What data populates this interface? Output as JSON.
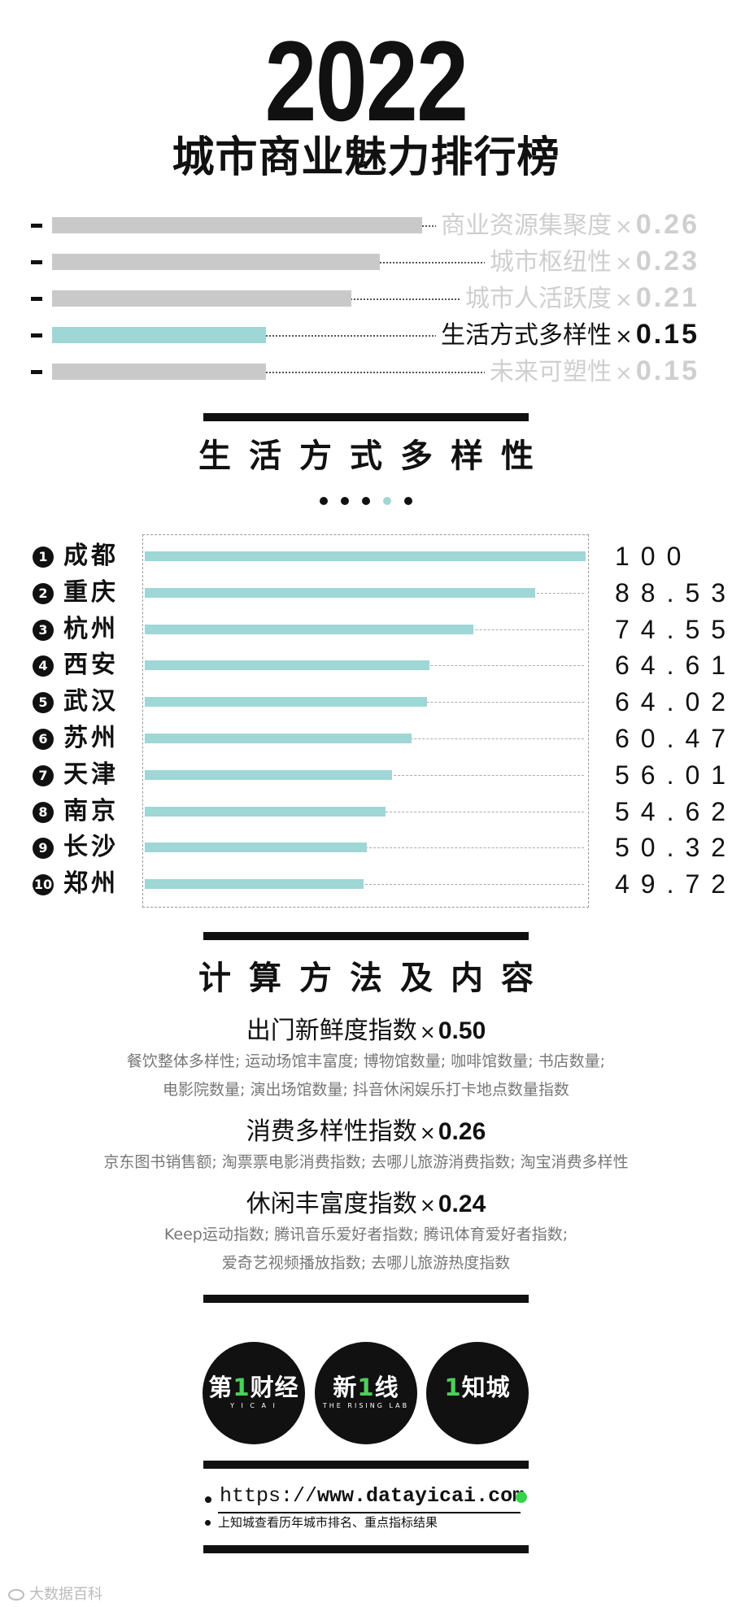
{
  "header": {
    "year": "2022",
    "title": "城市商业魅力排行榜"
  },
  "weights": [
    {
      "label": "商业资源集聚度",
      "weight": "0.26",
      "active": false
    },
    {
      "label": "城市枢纽性",
      "weight": "0.23",
      "active": false
    },
    {
      "label": "城市人活跃度",
      "weight": "0.21",
      "active": false
    },
    {
      "label": "生活方式多样性",
      "weight": "0.15",
      "active": true
    },
    {
      "label": "未来可塑性",
      "weight": "0.15",
      "active": false
    }
  ],
  "multiply_sign": "×",
  "section_title": "生活方式多样性",
  "pager": {
    "count": 5,
    "active_index": 3
  },
  "chart_data": {
    "type": "bar",
    "orientation": "horizontal",
    "title": "生活方式多样性",
    "categories": [
      "成都",
      "重庆",
      "杭州",
      "西安",
      "武汉",
      "苏州",
      "天津",
      "南京",
      "长沙",
      "郑州"
    ],
    "ranks": [
      "1",
      "2",
      "3",
      "4",
      "5",
      "6",
      "7",
      "8",
      "9",
      "10"
    ],
    "values": [
      100,
      88.53,
      74.55,
      64.61,
      64.02,
      60.47,
      56.01,
      54.62,
      50.32,
      49.72
    ],
    "value_labels": [
      "100",
      "88.53",
      "74.55",
      "64.61",
      "64.02",
      "60.47",
      "56.01",
      "54.62",
      "50.32",
      "49.72"
    ],
    "xlim": [
      0,
      100
    ],
    "bar_color": "#9fd6d6"
  },
  "method": {
    "title": "计算方法及内容",
    "items": [
      {
        "name": "出门新鲜度指数",
        "weight": "0.50",
        "desc": [
          "餐饮整体多样性; 运动场馆丰富度; 博物馆数量; 咖啡馆数量; 书店数量;",
          "电影院数量; 演出场馆数量; 抖音休闲娱乐打卡地点数量指数"
        ]
      },
      {
        "name": "消费多样性指数",
        "weight": "0.26",
        "desc": [
          "京东图书销售额; 淘票票电影消费指数; 去哪儿旅游消费指数; 淘宝消费多样性"
        ]
      },
      {
        "name": "休闲丰富度指数",
        "weight": "0.24",
        "desc": [
          "Keep运动指数; 腾讯音乐爱好者指数; 腾讯体育爱好者指数;",
          "爱奇艺视频播放指数; 去哪儿旅游热度指数"
        ]
      }
    ]
  },
  "logos": [
    {
      "name": "yicai-logo",
      "text_a": "第",
      "text_g": "1",
      "text_b": "财经",
      "sub": "Y I C A I"
    },
    {
      "name": "rising-lab-logo",
      "text_a": "新",
      "text_g": "1",
      "text_b": "线",
      "sub": "THE RISING LAB"
    },
    {
      "name": "zhicheng-logo",
      "text_a": "",
      "text_g": "1",
      "text_b": "知城",
      "sub": ""
    }
  ],
  "footer": {
    "url_prefix": "https://",
    "url_domain": "www.datayicai.com",
    "note": "上知城查看历年城市排名、重点指标结果",
    "watermark": "大数据百科"
  },
  "colors": {
    "accent": "#9fd6d6",
    "inactive": "#c9c9c9",
    "brand_green": "#37d24b",
    "ink": "#111111"
  }
}
